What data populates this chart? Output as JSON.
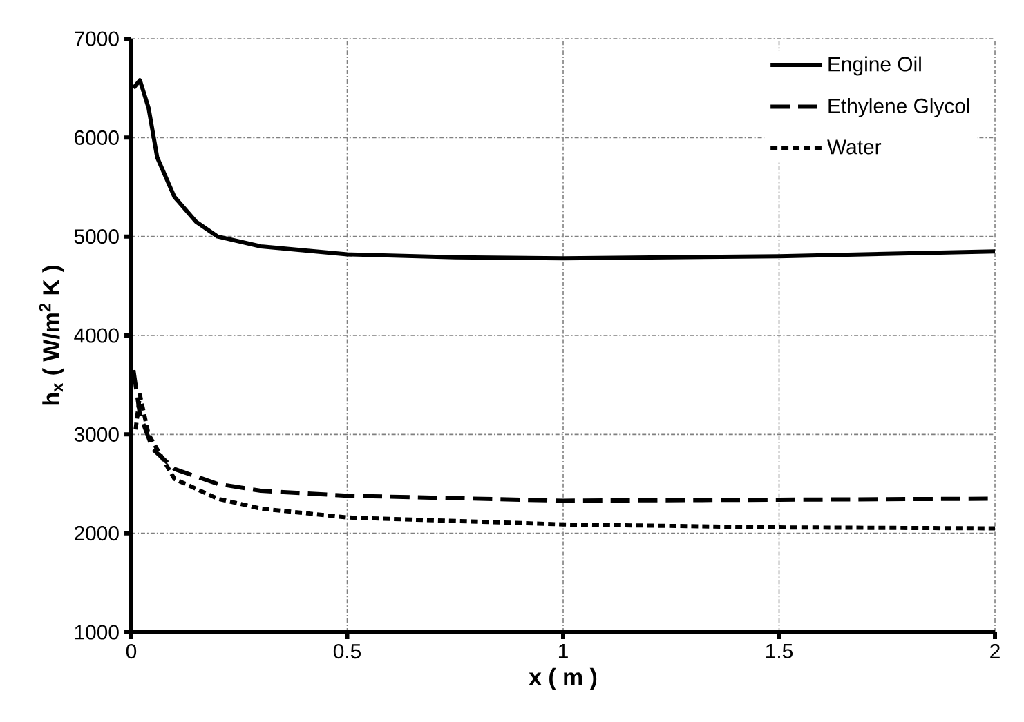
{
  "chart_data": {
    "type": "line",
    "xlabel": "x ( m )",
    "ylabel": "h$_{x}$  ( W/m$^{2}$ K )",
    "xlim": [
      0,
      2
    ],
    "ylim": [
      1000,
      7000
    ],
    "xticks": [
      0,
      0.5,
      1,
      1.5,
      2
    ],
    "yticks": [
      1000,
      2000,
      3000,
      4000,
      5000,
      6000,
      7000
    ],
    "grid": true,
    "legend": "top right",
    "marker": "none",
    "series": [
      {
        "name": "Engine Oil",
        "color": "#000000",
        "line_style": "solid",
        "x": [
          0.005,
          0.02,
          0.04,
          0.06,
          0.1,
          0.15,
          0.2,
          0.3,
          0.5,
          0.75,
          1,
          1.5,
          2
        ],
        "values": [
          6500,
          6580,
          6300,
          5800,
          5400,
          5150,
          5000,
          4900,
          4820,
          4790,
          4780,
          4800,
          4850
        ]
      },
      {
        "name": "Ethylene Glycol",
        "color": "#000000",
        "line_style": "dashed",
        "x": [
          0.005,
          0.02,
          0.05,
          0.1,
          0.2,
          0.3,
          0.5,
          1,
          1.5,
          2
        ],
        "values": [
          3650,
          3200,
          2850,
          2650,
          2500,
          2430,
          2380,
          2330,
          2340,
          2350
        ]
      },
      {
        "name": "Water",
        "color": "#000000",
        "line_style": "dotted",
        "x": [
          0.01,
          0.02,
          0.04,
          0.1,
          0.2,
          0.3,
          0.5,
          1,
          1.5,
          2
        ],
        "values": [
          3050,
          3400,
          3000,
          2550,
          2350,
          2250,
          2160,
          2090,
          2060,
          2050
        ]
      }
    ]
  }
}
